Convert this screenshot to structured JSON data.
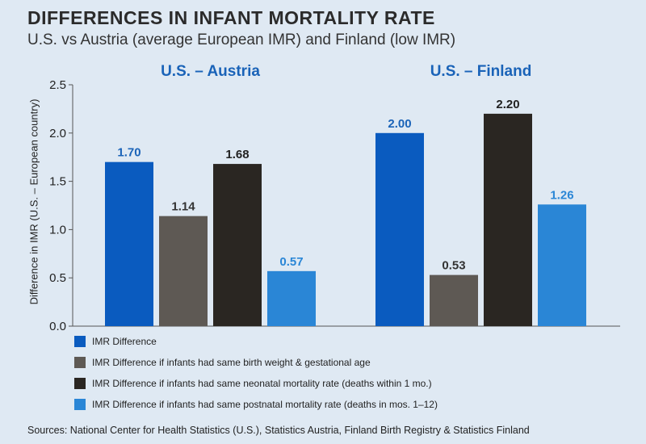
{
  "header": {
    "title": "DIFFERENCES IN INFANT MORTALITY RATE",
    "subtitle": "U.S. vs Austria (average European IMR) and Finland (low IMR)"
  },
  "footer": {
    "sources": "Sources: National Center for Health Statistics (U.S.), Statistics Austria,  Finland Birth Registry & Statistics Finland"
  },
  "chart_data": {
    "type": "bar",
    "title": "DIFFERENCES IN INFANT MORTALITY RATE",
    "subtitle": "U.S. vs Austria (average European IMR) and Finland (low IMR)",
    "ylabel": "Difference in IMR (U.S. – European country)",
    "xlabel": "",
    "ylim": [
      0,
      2.5
    ],
    "yticks": [
      "0.0",
      "0.5",
      "1.0",
      "1.5",
      "2.0",
      "2.5"
    ],
    "categories": [
      "U.S. – Austria",
      "U.S. – Finland"
    ],
    "series": [
      {
        "name": "IMR Difference",
        "values": [
          1.7,
          2.0
        ],
        "labels": [
          "1.70",
          "2.00"
        ],
        "color": "#0a5bbf",
        "label_color": "#1a63b8"
      },
      {
        "name": "IMR Difference if infants had same birth weight & gestational age",
        "values": [
          1.14,
          0.53
        ],
        "labels": [
          "1.14",
          "0.53"
        ],
        "color": "#5e5954",
        "label_color": "#333333"
      },
      {
        "name": "IMR Difference if infants had same neonatal mortality rate (deaths within 1 mo.)",
        "values": [
          1.68,
          2.2
        ],
        "labels": [
          "1.68",
          "2.20"
        ],
        "color": "#2a2622",
        "label_color": "#222222"
      },
      {
        "name": "IMR Difference if infants had same postnatal mortality rate (deaths in mos. 1–12)",
        "values": [
          0.57,
          1.26
        ],
        "labels": [
          "0.57",
          "1.26"
        ],
        "color": "#2a86d6",
        "label_color": "#2a86d6"
      }
    ],
    "grid": false,
    "legend_position": "bottom-left"
  }
}
